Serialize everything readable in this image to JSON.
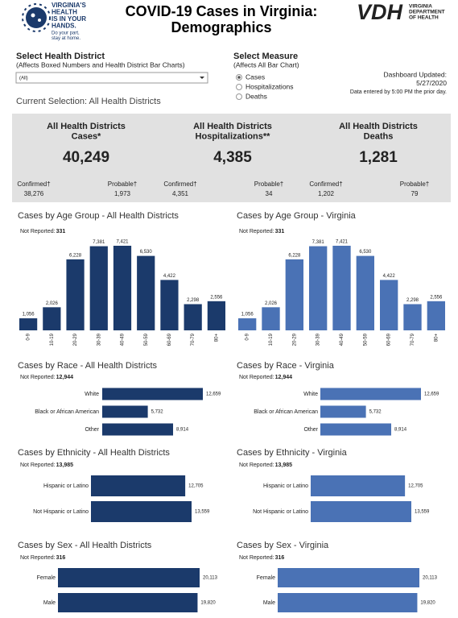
{
  "header": {
    "logo_lines": [
      "VIRGINIA'S",
      "HEALTH",
      "IS IN YOUR",
      "HANDS."
    ],
    "logo_tagline": [
      "Do your part,",
      "stay at home."
    ],
    "title_lines": [
      "COVID-19 Cases in Virginia:",
      "Demographics"
    ],
    "vdh": "VDH",
    "vdh_sub": [
      "VIRGINIA",
      "DEPARTMENT",
      "OF HEALTH"
    ]
  },
  "filters": {
    "district_label": "Select Health District",
    "district_note": "(Affects Boxed Numbers and Health District Bar Charts)",
    "district_value": "(All)",
    "measure_label": "Select Measure",
    "measure_note": "(Affects All Bar Chart)",
    "measure_options": [
      "Cases",
      "Hospitalizations",
      "Deaths"
    ],
    "measure_selected": 0
  },
  "updated": [
    "Dashboard Updated:",
    "5/27/2020",
    "Data entered by 5:00 PM the prior day."
  ],
  "current_selection": "Current Selection: All Health Districts",
  "kpis": [
    {
      "title_lines": [
        "All Health Districts",
        "Cases*"
      ],
      "value": "40,249",
      "confirmed_label": "Confirmed†",
      "confirmed": "38,276",
      "probable_label": "Probable†",
      "probable": "1,973"
    },
    {
      "title_lines": [
        "All Health Districts",
        "Hospitalizations**"
      ],
      "value": "4,385",
      "confirmed_label": "Confirmed†",
      "confirmed": "4,351",
      "probable_label": "Probable†",
      "probable": "34"
    },
    {
      "title_lines": [
        "All Health Districts",
        "Deaths"
      ],
      "value": "1,281",
      "confirmed_label": "Confirmed†",
      "confirmed": "1,202",
      "probable_label": "Probable†",
      "probable": "79"
    }
  ],
  "chart_data": [
    {
      "type": "bar",
      "title": "Cases by Age Group - All Health Districts",
      "note_label": "Not Reported:",
      "note_value": "331",
      "color": "#1b3a6b",
      "categories": [
        "0-9",
        "10-19",
        "20-29",
        "30-39",
        "40-49",
        "50-59",
        "60-69",
        "70-79",
        "80+"
      ],
      "values": [
        1056,
        2026,
        6228,
        7381,
        7421,
        6530,
        4422,
        2298,
        2556
      ],
      "value_labels": [
        "1,056",
        "2,026",
        "6,228",
        "7,381",
        "7,421",
        "6,530",
        "4,422",
        "2,298",
        "2,556"
      ]
    },
    {
      "type": "bar",
      "title": "Cases by Age Group - Virginia",
      "note_label": "Not Reported:",
      "note_value": "331",
      "color": "#4a72b5",
      "categories": [
        "0-9",
        "10-19",
        "20-29",
        "30-39",
        "40-49",
        "50-59",
        "60-69",
        "70-79",
        "80+"
      ],
      "values": [
        1056,
        2026,
        6228,
        7381,
        7421,
        6530,
        4422,
        2298,
        2556
      ],
      "value_labels": [
        "1,056",
        "2,026",
        "6,228",
        "7,381",
        "7,421",
        "6,530",
        "4,422",
        "2,298",
        "2,556"
      ]
    },
    {
      "type": "barh",
      "title": "Cases by Race - All Health Districts",
      "note_label": "Not Reported:",
      "note_value": "12,944",
      "color": "#1b3a6b",
      "categories": [
        "White",
        "Black or African American",
        "Other"
      ],
      "values": [
        12659,
        5732,
        8914
      ],
      "value_labels": [
        "12,659",
        "5,732",
        "8,914"
      ]
    },
    {
      "type": "barh",
      "title": "Cases by Race - Virginia",
      "note_label": "Not Reported:",
      "note_value": "12,944",
      "color": "#4a72b5",
      "categories": [
        "White",
        "Black or African American",
        "Other"
      ],
      "values": [
        12659,
        5732,
        8914
      ],
      "value_labels": [
        "12,659",
        "5,732",
        "8,914"
      ]
    },
    {
      "type": "barh",
      "title": "Cases by Ethnicity - All Health Districts",
      "note_label": "Not Reported:",
      "note_value": "13,985",
      "color": "#1b3a6b",
      "categories": [
        "Hispanic or Latino",
        "Not Hispanic or Latino"
      ],
      "values": [
        12705,
        13559
      ],
      "value_labels": [
        "12,705",
        "13,559"
      ]
    },
    {
      "type": "barh",
      "title": "Cases by Ethnicity - Virginia",
      "note_label": "Not Reported:",
      "note_value": "13,985",
      "color": "#4a72b5",
      "categories": [
        "Hispanic or Latino",
        "Not Hispanic or Latino"
      ],
      "values": [
        12705,
        13559
      ],
      "value_labels": [
        "12,705",
        "13,559"
      ]
    },
    {
      "type": "barh",
      "title": "Cases by Sex - All Health Districts",
      "note_label": "Not Reported:",
      "note_value": "316",
      "color": "#1b3a6b",
      "categories": [
        "Female",
        "Male"
      ],
      "values": [
        20113,
        19820
      ],
      "value_labels": [
        "20,113",
        "19,820"
      ]
    },
    {
      "type": "barh",
      "title": "Cases by Sex - Virginia",
      "note_label": "Not Reported:",
      "note_value": "316",
      "color": "#4a72b5",
      "categories": [
        "Female",
        "Male"
      ],
      "values": [
        20113,
        19820
      ],
      "value_labels": [
        "20,113",
        "19,820"
      ]
    }
  ]
}
